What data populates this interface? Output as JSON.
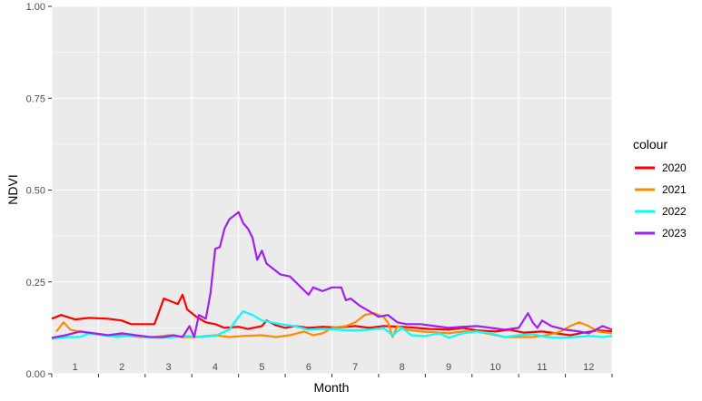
{
  "chart_data": {
    "type": "line",
    "title": "",
    "xlabel": "Month",
    "ylabel": "NDVI",
    "ylim": [
      0,
      1
    ],
    "xlim": [
      0.5,
      12.5
    ],
    "y_ticks": [
      "0.00",
      "0.25",
      "0.50",
      "0.75",
      "1.00"
    ],
    "y_tick_values": [
      0,
      0.25,
      0.5,
      0.75,
      1.0
    ],
    "x_ticks": [
      "1",
      "2",
      "3",
      "4",
      "5",
      "6",
      "7",
      "8",
      "9",
      "10",
      "11",
      "12"
    ],
    "grid": true,
    "legend_title": "colour",
    "legend_position": "right",
    "background_color": "#EBEBEB",
    "series": [
      {
        "name": "2020",
        "color": "#FF0000",
        "points": [
          [
            0.5,
            0.15
          ],
          [
            0.7,
            0.16
          ],
          [
            1.0,
            0.148
          ],
          [
            1.3,
            0.152
          ],
          [
            1.7,
            0.15
          ],
          [
            2.0,
            0.145
          ],
          [
            2.2,
            0.135
          ],
          [
            2.5,
            0.135
          ],
          [
            2.7,
            0.135
          ],
          [
            2.9,
            0.205
          ],
          [
            3.2,
            0.19
          ],
          [
            3.3,
            0.215
          ],
          [
            3.4,
            0.175
          ],
          [
            3.6,
            0.155
          ],
          [
            3.8,
            0.14
          ],
          [
            4.0,
            0.135
          ],
          [
            4.2,
            0.125
          ],
          [
            4.5,
            0.128
          ],
          [
            4.7,
            0.122
          ],
          [
            5.0,
            0.13
          ],
          [
            5.1,
            0.145
          ],
          [
            5.3,
            0.132
          ],
          [
            5.5,
            0.125
          ],
          [
            5.7,
            0.13
          ],
          [
            6.0,
            0.125
          ],
          [
            6.3,
            0.128
          ],
          [
            6.6,
            0.126
          ],
          [
            7.0,
            0.13
          ],
          [
            7.3,
            0.125
          ],
          [
            7.6,
            0.13
          ],
          [
            8.0,
            0.128
          ],
          [
            8.3,
            0.125
          ],
          [
            8.6,
            0.122
          ],
          [
            9.0,
            0.12
          ],
          [
            9.3,
            0.125
          ],
          [
            9.6,
            0.118
          ],
          [
            10.0,
            0.115
          ],
          [
            10.3,
            0.12
          ],
          [
            10.6,
            0.112
          ],
          [
            11.0,
            0.115
          ],
          [
            11.3,
            0.11
          ],
          [
            11.6,
            0.105
          ],
          [
            11.9,
            0.112
          ],
          [
            12.2,
            0.118
          ],
          [
            12.5,
            0.115
          ]
        ]
      },
      {
        "name": "2021",
        "color": "#FF8C00",
        "points": [
          [
            0.6,
            0.115
          ],
          [
            0.75,
            0.14
          ],
          [
            0.9,
            0.12
          ],
          [
            1.1,
            0.115
          ],
          [
            1.4,
            0.11
          ],
          [
            1.7,
            0.105
          ],
          [
            2.0,
            0.105
          ],
          [
            2.4,
            0.1
          ],
          [
            2.7,
            0.1
          ],
          [
            3.0,
            0.105
          ],
          [
            3.3,
            0.1
          ],
          [
            3.6,
            0.1
          ],
          [
            4.0,
            0.105
          ],
          [
            4.3,
            0.1
          ],
          [
            4.6,
            0.103
          ],
          [
            5.0,
            0.105
          ],
          [
            5.3,
            0.1
          ],
          [
            5.6,
            0.105
          ],
          [
            5.9,
            0.115
          ],
          [
            6.1,
            0.105
          ],
          [
            6.3,
            0.11
          ],
          [
            6.5,
            0.125
          ],
          [
            6.8,
            0.13
          ],
          [
            7.0,
            0.14
          ],
          [
            7.2,
            0.16
          ],
          [
            7.4,
            0.165
          ],
          [
            7.6,
            0.155
          ],
          [
            7.7,
            0.14
          ],
          [
            7.8,
            0.1
          ],
          [
            7.9,
            0.13
          ],
          [
            8.1,
            0.12
          ],
          [
            8.4,
            0.115
          ],
          [
            8.7,
            0.113
          ],
          [
            9.0,
            0.11
          ],
          [
            9.3,
            0.115
          ],
          [
            9.6,
            0.115
          ],
          [
            9.9,
            0.108
          ],
          [
            10.2,
            0.1
          ],
          [
            10.5,
            0.1
          ],
          [
            10.8,
            0.1
          ],
          [
            11.1,
            0.105
          ],
          [
            11.4,
            0.115
          ],
          [
            11.6,
            0.13
          ],
          [
            11.8,
            0.14
          ],
          [
            12.0,
            0.13
          ],
          [
            12.2,
            0.115
          ],
          [
            12.5,
            0.11
          ]
        ]
      },
      {
        "name": "2022",
        "color": "#00FFFF",
        "points": [
          [
            0.5,
            0.095
          ],
          [
            0.8,
            0.1
          ],
          [
            1.1,
            0.1
          ],
          [
            1.3,
            0.11
          ],
          [
            1.6,
            0.105
          ],
          [
            1.9,
            0.1
          ],
          [
            2.2,
            0.105
          ],
          [
            2.5,
            0.1
          ],
          [
            2.8,
            0.098
          ],
          [
            3.1,
            0.1
          ],
          [
            3.4,
            0.103
          ],
          [
            3.7,
            0.1
          ],
          [
            4.0,
            0.103
          ],
          [
            4.3,
            0.12
          ],
          [
            4.5,
            0.155
          ],
          [
            4.6,
            0.17
          ],
          [
            4.8,
            0.16
          ],
          [
            5.0,
            0.145
          ],
          [
            5.2,
            0.14
          ],
          [
            5.4,
            0.135
          ],
          [
            5.7,
            0.13
          ],
          [
            6.0,
            0.12
          ],
          [
            6.3,
            0.122
          ],
          [
            6.6,
            0.12
          ],
          [
            7.0,
            0.118
          ],
          [
            7.3,
            0.12
          ],
          [
            7.6,
            0.125
          ],
          [
            7.8,
            0.105
          ],
          [
            8.0,
            0.125
          ],
          [
            8.2,
            0.105
          ],
          [
            8.5,
            0.103
          ],
          [
            8.8,
            0.11
          ],
          [
            9.0,
            0.098
          ],
          [
            9.3,
            0.11
          ],
          [
            9.6,
            0.115
          ],
          [
            9.9,
            0.11
          ],
          [
            10.2,
            0.1
          ],
          [
            10.5,
            0.105
          ],
          [
            10.8,
            0.108
          ],
          [
            11.1,
            0.1
          ],
          [
            11.4,
            0.098
          ],
          [
            11.7,
            0.1
          ],
          [
            12.0,
            0.103
          ],
          [
            12.3,
            0.1
          ],
          [
            12.5,
            0.103
          ]
        ]
      },
      {
        "name": "2023",
        "color": "#A020F0",
        "points": [
          [
            0.5,
            0.098
          ],
          [
            0.8,
            0.105
          ],
          [
            1.1,
            0.115
          ],
          [
            1.4,
            0.11
          ],
          [
            1.7,
            0.105
          ],
          [
            2.0,
            0.11
          ],
          [
            2.3,
            0.105
          ],
          [
            2.6,
            0.1
          ],
          [
            2.9,
            0.1
          ],
          [
            3.1,
            0.105
          ],
          [
            3.3,
            0.1
          ],
          [
            3.45,
            0.13
          ],
          [
            3.55,
            0.1
          ],
          [
            3.65,
            0.16
          ],
          [
            3.8,
            0.15
          ],
          [
            3.9,
            0.22
          ],
          [
            4.0,
            0.34
          ],
          [
            4.1,
            0.345
          ],
          [
            4.2,
            0.395
          ],
          [
            4.3,
            0.42
          ],
          [
            4.4,
            0.43
          ],
          [
            4.5,
            0.44
          ],
          [
            4.6,
            0.41
          ],
          [
            4.7,
            0.395
          ],
          [
            4.8,
            0.37
          ],
          [
            4.9,
            0.31
          ],
          [
            5.0,
            0.335
          ],
          [
            5.1,
            0.3
          ],
          [
            5.2,
            0.29
          ],
          [
            5.4,
            0.27
          ],
          [
            5.6,
            0.265
          ],
          [
            5.8,
            0.24
          ],
          [
            6.0,
            0.215
          ],
          [
            6.1,
            0.235
          ],
          [
            6.3,
            0.225
          ],
          [
            6.5,
            0.235
          ],
          [
            6.7,
            0.235
          ],
          [
            6.8,
            0.2
          ],
          [
            6.9,
            0.205
          ],
          [
            7.1,
            0.185
          ],
          [
            7.3,
            0.17
          ],
          [
            7.5,
            0.155
          ],
          [
            7.7,
            0.16
          ],
          [
            7.9,
            0.14
          ],
          [
            8.1,
            0.135
          ],
          [
            8.4,
            0.135
          ],
          [
            8.7,
            0.13
          ],
          [
            9.0,
            0.125
          ],
          [
            9.3,
            0.128
          ],
          [
            9.6,
            0.13
          ],
          [
            9.9,
            0.125
          ],
          [
            10.2,
            0.12
          ],
          [
            10.5,
            0.125
          ],
          [
            10.7,
            0.165
          ],
          [
            10.8,
            0.14
          ],
          [
            10.9,
            0.125
          ],
          [
            11.0,
            0.145
          ],
          [
            11.2,
            0.13
          ],
          [
            11.5,
            0.12
          ],
          [
            11.8,
            0.115
          ],
          [
            12.0,
            0.11
          ],
          [
            12.3,
            0.13
          ],
          [
            12.5,
            0.12
          ]
        ]
      }
    ]
  }
}
